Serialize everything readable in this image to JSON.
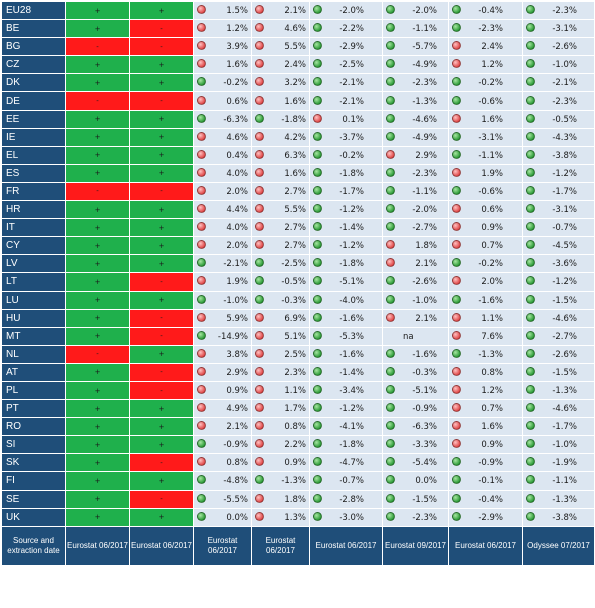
{
  "colors": {
    "plus": "#1fb04c",
    "minus": "#ff1a1a",
    "header": "#1f4e79",
    "cell": "#dce6f1",
    "dot_green": "#2f9d3a",
    "dot_red": "#e04a4a"
  },
  "rows": [
    {
      "c": "EU28",
      "f1": "+",
      "f2": "+",
      "v": [
        [
          "r",
          "1.5%"
        ],
        [
          "r",
          "2.1%"
        ],
        [
          "g",
          "-2.0%"
        ],
        [
          "g",
          "-2.0%"
        ],
        [
          "g",
          "-0.4%"
        ],
        [
          "g",
          "-2.3%"
        ]
      ]
    },
    {
      "c": "BE",
      "f1": "+",
      "f2": "-",
      "v": [
        [
          "r",
          "1.2%"
        ],
        [
          "r",
          "4.6%"
        ],
        [
          "g",
          "-2.2%"
        ],
        [
          "g",
          "-1.1%"
        ],
        [
          "g",
          "-2.3%"
        ],
        [
          "g",
          "-3.1%"
        ]
      ]
    },
    {
      "c": "BG",
      "f1": "-",
      "f2": "-",
      "v": [
        [
          "r",
          "3.9%"
        ],
        [
          "r",
          "5.5%"
        ],
        [
          "g",
          "-2.9%"
        ],
        [
          "g",
          "-5.7%"
        ],
        [
          "r",
          "2.4%"
        ],
        [
          "g",
          "-2.6%"
        ]
      ]
    },
    {
      "c": "CZ",
      "f1": "+",
      "f2": "+",
      "v": [
        [
          "r",
          "1.6%"
        ],
        [
          "r",
          "2.4%"
        ],
        [
          "g",
          "-2.5%"
        ],
        [
          "g",
          "-4.9%"
        ],
        [
          "r",
          "1.2%"
        ],
        [
          "g",
          "-1.0%"
        ]
      ]
    },
    {
      "c": "DK",
      "f1": "+",
      "f2": "+",
      "v": [
        [
          "g",
          "-0.2%"
        ],
        [
          "r",
          "3.2%"
        ],
        [
          "g",
          "-2.1%"
        ],
        [
          "g",
          "-2.3%"
        ],
        [
          "g",
          "-0.2%"
        ],
        [
          "g",
          "-2.1%"
        ]
      ]
    },
    {
      "c": "DE",
      "f1": "-",
      "f2": "-",
      "v": [
        [
          "r",
          "0.6%"
        ],
        [
          "r",
          "1.6%"
        ],
        [
          "g",
          "-2.1%"
        ],
        [
          "g",
          "-1.3%"
        ],
        [
          "g",
          "-0.6%"
        ],
        [
          "g",
          "-2.3%"
        ]
      ]
    },
    {
      "c": "EE",
      "f1": "+",
      "f2": "+",
      "v": [
        [
          "g",
          "-6.3%"
        ],
        [
          "g",
          "-1.8%"
        ],
        [
          "r",
          "0.1%"
        ],
        [
          "g",
          "-4.6%"
        ],
        [
          "r",
          "1.6%"
        ],
        [
          "g",
          "-0.5%"
        ]
      ]
    },
    {
      "c": "IE",
      "f1": "+",
      "f2": "+",
      "v": [
        [
          "r",
          "4.6%"
        ],
        [
          "r",
          "4.2%"
        ],
        [
          "g",
          "-3.7%"
        ],
        [
          "g",
          "-4.9%"
        ],
        [
          "g",
          "-3.1%"
        ],
        [
          "g",
          "-4.3%"
        ]
      ]
    },
    {
      "c": "EL",
      "f1": "+",
      "f2": "+",
      "v": [
        [
          "r",
          "0.4%"
        ],
        [
          "r",
          "6.3%"
        ],
        [
          "g",
          "-0.2%"
        ],
        [
          "r",
          "2.9%"
        ],
        [
          "g",
          "-1.1%"
        ],
        [
          "g",
          "-3.8%"
        ]
      ]
    },
    {
      "c": "ES",
      "f1": "+",
      "f2": "+",
      "v": [
        [
          "r",
          "4.0%"
        ],
        [
          "r",
          "1.6%"
        ],
        [
          "g",
          "-1.8%"
        ],
        [
          "g",
          "-2.3%"
        ],
        [
          "r",
          "1.9%"
        ],
        [
          "g",
          "-1.2%"
        ]
      ]
    },
    {
      "c": "FR",
      "f1": "-",
      "f2": "-",
      "v": [
        [
          "r",
          "2.0%"
        ],
        [
          "r",
          "2.7%"
        ],
        [
          "g",
          "-1.7%"
        ],
        [
          "g",
          "-1.1%"
        ],
        [
          "g",
          "-0.6%"
        ],
        [
          "g",
          "-1.7%"
        ]
      ]
    },
    {
      "c": "HR",
      "f1": "+",
      "f2": "+",
      "v": [
        [
          "r",
          "4.4%"
        ],
        [
          "r",
          "5.5%"
        ],
        [
          "g",
          "-1.2%"
        ],
        [
          "g",
          "-2.0%"
        ],
        [
          "r",
          "0.6%"
        ],
        [
          "g",
          "-3.1%"
        ]
      ]
    },
    {
      "c": "IT",
      "f1": "+",
      "f2": "+",
      "v": [
        [
          "r",
          "4.0%"
        ],
        [
          "r",
          "2.7%"
        ],
        [
          "g",
          "-1.4%"
        ],
        [
          "g",
          "-2.7%"
        ],
        [
          "r",
          "0.9%"
        ],
        [
          "g",
          "-0.7%"
        ]
      ]
    },
    {
      "c": "CY",
      "f1": "+",
      "f2": "+",
      "v": [
        [
          "r",
          "2.0%"
        ],
        [
          "r",
          "2.7%"
        ],
        [
          "g",
          "-1.2%"
        ],
        [
          "r",
          "1.8%"
        ],
        [
          "r",
          "0.7%"
        ],
        [
          "g",
          "-4.5%"
        ]
      ]
    },
    {
      "c": "LV",
      "f1": "+",
      "f2": "+",
      "v": [
        [
          "g",
          "-2.1%"
        ],
        [
          "g",
          "-2.5%"
        ],
        [
          "g",
          "-1.8%"
        ],
        [
          "r",
          "2.1%"
        ],
        [
          "g",
          "-0.2%"
        ],
        [
          "g",
          "-3.6%"
        ]
      ]
    },
    {
      "c": "LT",
      "f1": "+",
      "f2": "-",
      "v": [
        [
          "r",
          "1.9%"
        ],
        [
          "g",
          "-0.5%"
        ],
        [
          "g",
          "-5.1%"
        ],
        [
          "g",
          "-2.6%"
        ],
        [
          "r",
          "2.0%"
        ],
        [
          "g",
          "-1.2%"
        ]
      ]
    },
    {
      "c": "LU",
      "f1": "+",
      "f2": "+",
      "v": [
        [
          "g",
          "-1.0%"
        ],
        [
          "g",
          "-0.3%"
        ],
        [
          "g",
          "-4.0%"
        ],
        [
          "g",
          "-1.0%"
        ],
        [
          "g",
          "-1.6%"
        ],
        [
          "g",
          "-1.5%"
        ]
      ]
    },
    {
      "c": "HU",
      "f1": "+",
      "f2": "-",
      "v": [
        [
          "r",
          "5.9%"
        ],
        [
          "r",
          "6.9%"
        ],
        [
          "g",
          "-1.6%"
        ],
        [
          "r",
          "2.1%"
        ],
        [
          "r",
          "1.1%"
        ],
        [
          "g",
          "-4.6%"
        ]
      ]
    },
    {
      "c": "MT",
      "f1": "+",
      "f2": "-",
      "v": [
        [
          "g",
          "-14.9%"
        ],
        [
          "r",
          "5.1%"
        ],
        [
          "g",
          "-5.3%"
        ],
        [
          "n",
          "na"
        ],
        [
          "r",
          "7.6%"
        ],
        [
          "g",
          "-2.7%"
        ]
      ]
    },
    {
      "c": "NL",
      "f1": "-",
      "f2": "+",
      "v": [
        [
          "r",
          "3.8%"
        ],
        [
          "r",
          "2.5%"
        ],
        [
          "g",
          "-1.6%"
        ],
        [
          "g",
          "-1.6%"
        ],
        [
          "g",
          "-1.3%"
        ],
        [
          "g",
          "-2.6%"
        ]
      ]
    },
    {
      "c": "AT",
      "f1": "+",
      "f2": "-",
      "v": [
        [
          "r",
          "2.9%"
        ],
        [
          "r",
          "2.3%"
        ],
        [
          "g",
          "-1.4%"
        ],
        [
          "g",
          "-0.3%"
        ],
        [
          "r",
          "0.8%"
        ],
        [
          "g",
          "-1.5%"
        ]
      ]
    },
    {
      "c": "PL",
      "f1": "+",
      "f2": "-",
      "v": [
        [
          "r",
          "0.9%"
        ],
        [
          "r",
          "1.1%"
        ],
        [
          "g",
          "-3.4%"
        ],
        [
          "g",
          "-5.1%"
        ],
        [
          "r",
          "1.2%"
        ],
        [
          "g",
          "-1.3%"
        ]
      ]
    },
    {
      "c": "PT",
      "f1": "+",
      "f2": "+",
      "v": [
        [
          "r",
          "4.9%"
        ],
        [
          "r",
          "1.7%"
        ],
        [
          "g",
          "-1.2%"
        ],
        [
          "g",
          "-0.9%"
        ],
        [
          "r",
          "0.7%"
        ],
        [
          "g",
          "-4.6%"
        ]
      ]
    },
    {
      "c": "RO",
      "f1": "+",
      "f2": "+",
      "v": [
        [
          "r",
          "2.1%"
        ],
        [
          "r",
          "0.8%"
        ],
        [
          "g",
          "-4.1%"
        ],
        [
          "g",
          "-6.3%"
        ],
        [
          "r",
          "1.6%"
        ],
        [
          "g",
          "-1.7%"
        ]
      ]
    },
    {
      "c": "SI",
      "f1": "+",
      "f2": "+",
      "v": [
        [
          "g",
          "-0.9%"
        ],
        [
          "r",
          "2.2%"
        ],
        [
          "g",
          "-1.8%"
        ],
        [
          "g",
          "-3.3%"
        ],
        [
          "r",
          "0.9%"
        ],
        [
          "g",
          "-1.0%"
        ]
      ]
    },
    {
      "c": "SK",
      "f1": "+",
      "f2": "-",
      "v": [
        [
          "r",
          "0.8%"
        ],
        [
          "r",
          "0.9%"
        ],
        [
          "g",
          "-4.7%"
        ],
        [
          "g",
          "-5.4%"
        ],
        [
          "g",
          "-0.9%"
        ],
        [
          "g",
          "-1.9%"
        ]
      ]
    },
    {
      "c": "FI",
      "f1": "+",
      "f2": "+",
      "v": [
        [
          "g",
          "-4.8%"
        ],
        [
          "g",
          "-1.3%"
        ],
        [
          "g",
          "-0.7%"
        ],
        [
          "g",
          "0.0%"
        ],
        [
          "g",
          "-0.1%"
        ],
        [
          "g",
          "-1.1%"
        ]
      ]
    },
    {
      "c": "SE",
      "f1": "+",
      "f2": "-",
      "v": [
        [
          "g",
          "-5.5%"
        ],
        [
          "r",
          "1.8%"
        ],
        [
          "g",
          "-2.8%"
        ],
        [
          "g",
          "-1.5%"
        ],
        [
          "g",
          "-0.4%"
        ],
        [
          "g",
          "-1.3%"
        ]
      ]
    },
    {
      "c": "UK",
      "f1": "+",
      "f2": "+",
      "v": [
        [
          "g",
          "0.0%"
        ],
        [
          "r",
          "1.3%"
        ],
        [
          "g",
          "-3.0%"
        ],
        [
          "g",
          "-2.3%"
        ],
        [
          "g",
          "-2.9%"
        ],
        [
          "g",
          "-3.8%"
        ]
      ]
    }
  ],
  "footer": {
    "label": "Source and extraction date",
    "cols": [
      "Eurostat 06/2017",
      "Eurostat 06/2017",
      "Eurostat 06/2017",
      "Eurostat 06/2017",
      "Eurostat 06/2017",
      "Eurostat 09/2017",
      "Eurostat 06/2017",
      "Odyssee 07/2017"
    ]
  }
}
